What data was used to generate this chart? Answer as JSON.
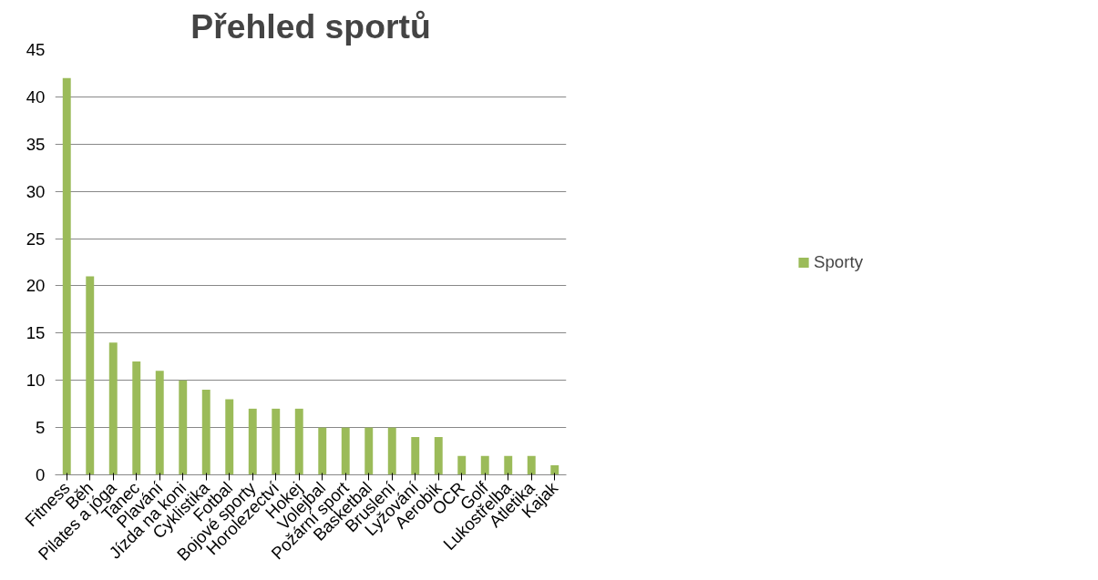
{
  "chart_data": {
    "type": "bar",
    "title": "Přehled sportů",
    "categories": [
      "Fitness",
      "Běh",
      "Pilates a jóga",
      "Tanec",
      "Plavání",
      "Jízda na koni",
      "Cyklistika",
      "Fotbal",
      "Bojové sporty",
      "Horolezectví",
      "Hokej",
      "Volejbal",
      "Požární sport",
      "Basketbal",
      "Bruslení",
      "Lyžování",
      "Aerobik",
      "OCR",
      "Golf",
      "Lukostřelba",
      "Atletika",
      "Kajak"
    ],
    "series": [
      {
        "name": "Sporty",
        "color": "#9bbb59",
        "values": [
          42,
          21,
          14,
          12,
          11,
          10,
          9,
          8,
          7,
          7,
          7,
          5,
          5,
          5,
          5,
          4,
          4,
          2,
          2,
          2,
          2,
          1
        ]
      }
    ],
    "ylim": [
      0,
      45
    ],
    "yticks": [
      0,
      5,
      10,
      15,
      20,
      25,
      30,
      35,
      40,
      45
    ],
    "grid": "y",
    "legend": "right"
  }
}
